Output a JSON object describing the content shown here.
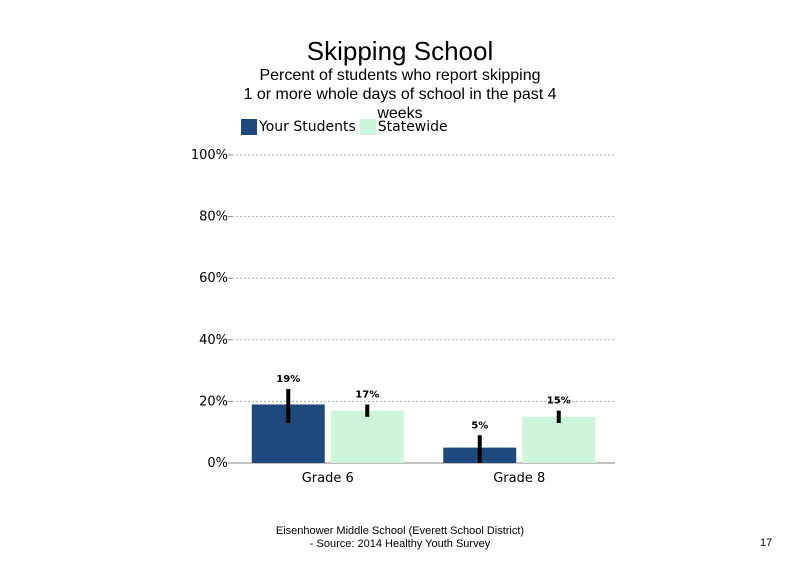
{
  "chart_data": {
    "type": "bar",
    "title": "Skipping School",
    "subtitle": "Percent of students who report skipping\n1 or more whole days of school in the past 4 weeks",
    "categories": [
      "Grade 6",
      "Grade 8"
    ],
    "series": [
      {
        "name": "Your Students",
        "color": "#1f497d",
        "values": [
          19,
          5
        ],
        "labels": [
          "19%",
          "5%"
        ],
        "error_low": [
          13,
          0
        ],
        "error_high": [
          24,
          9
        ]
      },
      {
        "name": "Statewide",
        "color": "#ccf5d9",
        "values": [
          17,
          15
        ],
        "labels": [
          "17%",
          "15%"
        ],
        "error_low": [
          15,
          13
        ],
        "error_high": [
          19,
          17
        ]
      }
    ],
    "ylim": [
      0,
      100
    ],
    "yticks": [
      "0%",
      "20%",
      "40%",
      "60%",
      "80%",
      "100%"
    ],
    "grid": true,
    "legend_position": "top-left"
  },
  "footer": {
    "text": "Eisenhower Middle School (Everett School District)\n- Source: 2014 Healthy Youth Survey",
    "page_number": "17"
  }
}
